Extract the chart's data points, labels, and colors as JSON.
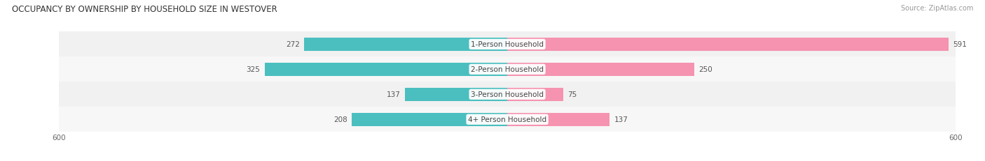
{
  "title": "OCCUPANCY BY OWNERSHIP BY HOUSEHOLD SIZE IN WESTOVER",
  "source": "Source: ZipAtlas.com",
  "categories": [
    "1-Person Household",
    "2-Person Household",
    "3-Person Household",
    "4+ Person Household"
  ],
  "owner_values": [
    272,
    325,
    137,
    208
  ],
  "renter_values": [
    591,
    250,
    75,
    137
  ],
  "owner_color": "#4BBFBF",
  "renter_color": "#F593B0",
  "axis_max": 600,
  "title_fontsize": 8.5,
  "source_fontsize": 7,
  "legend_fontsize": 8,
  "value_fontsize": 7.5,
  "cat_label_fontsize": 7.5,
  "tick_fontsize": 7.5,
  "background_color": "#FFFFFF",
  "row_bg_even": "#F2F2F2",
  "row_bg_odd": "#E8E8E8"
}
